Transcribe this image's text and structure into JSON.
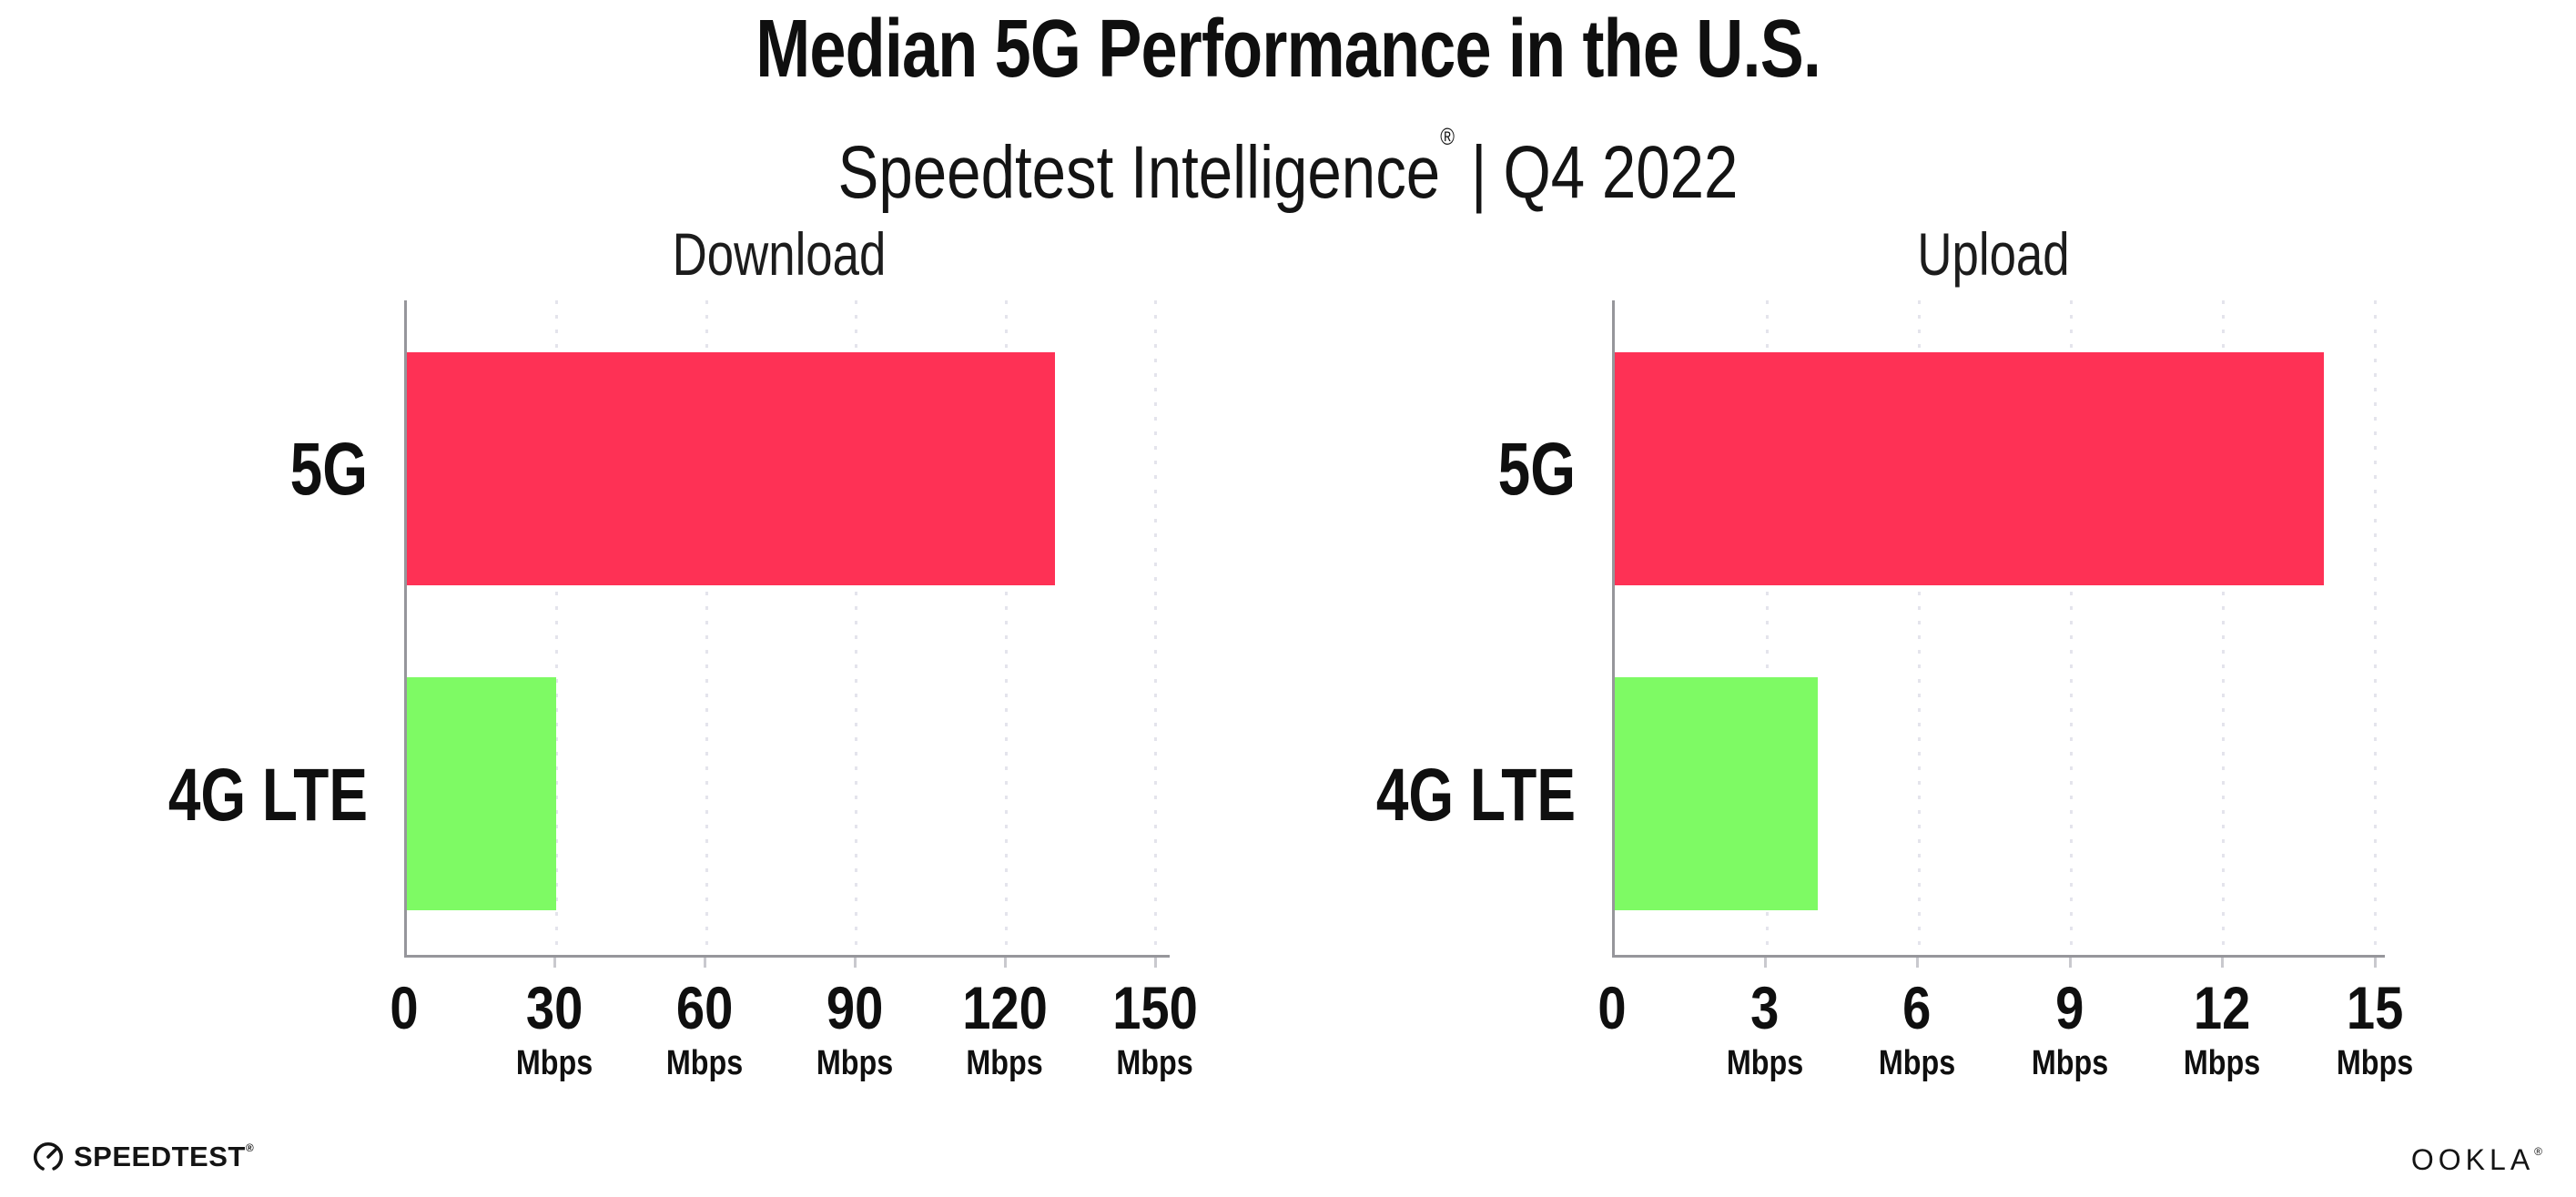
{
  "header": {
    "title": "Median 5G Performance in the U.S.",
    "subtitle_brand": "Speedtest Intelligence",
    "subtitle_registered": "®",
    "subtitle_divider": "|",
    "subtitle_period": "Q4 2022"
  },
  "footer": {
    "speedtest_wordmark": "SPEEDTEST",
    "speedtest_registered": "®",
    "speedtest_icon": "gauge-icon",
    "ookla_wordmark": "OOKLA",
    "ookla_registered": "®"
  },
  "colors": {
    "bar_5g": "#FE3155",
    "bar_4g_lte": "#7EFA64",
    "axis": "#96969B",
    "gridline": "#E4E4EC",
    "text": "#0F0F0F"
  },
  "chart_data": [
    {
      "type": "bar",
      "title": "Download",
      "orientation": "horizontal",
      "categories": [
        "5G",
        "4G LTE"
      ],
      "values": [
        130,
        30
      ],
      "unit": "Mbps",
      "xlim": [
        0,
        150
      ],
      "xticks": [
        0,
        30,
        60,
        90,
        120,
        150
      ],
      "bar_colors": [
        "#FE3155",
        "#7EFA64"
      ],
      "grid": "vertical-dotted",
      "legend": "none"
    },
    {
      "type": "bar",
      "title": "Upload",
      "orientation": "horizontal",
      "categories": [
        "5G",
        "4G LTE"
      ],
      "values": [
        14,
        4
      ],
      "unit": "Mbps",
      "xlim": [
        0,
        15
      ],
      "xticks": [
        0,
        3,
        6,
        9,
        12,
        15
      ],
      "bar_colors": [
        "#FE3155",
        "#7EFA64"
      ],
      "grid": "vertical-dotted",
      "legend": "none"
    }
  ]
}
